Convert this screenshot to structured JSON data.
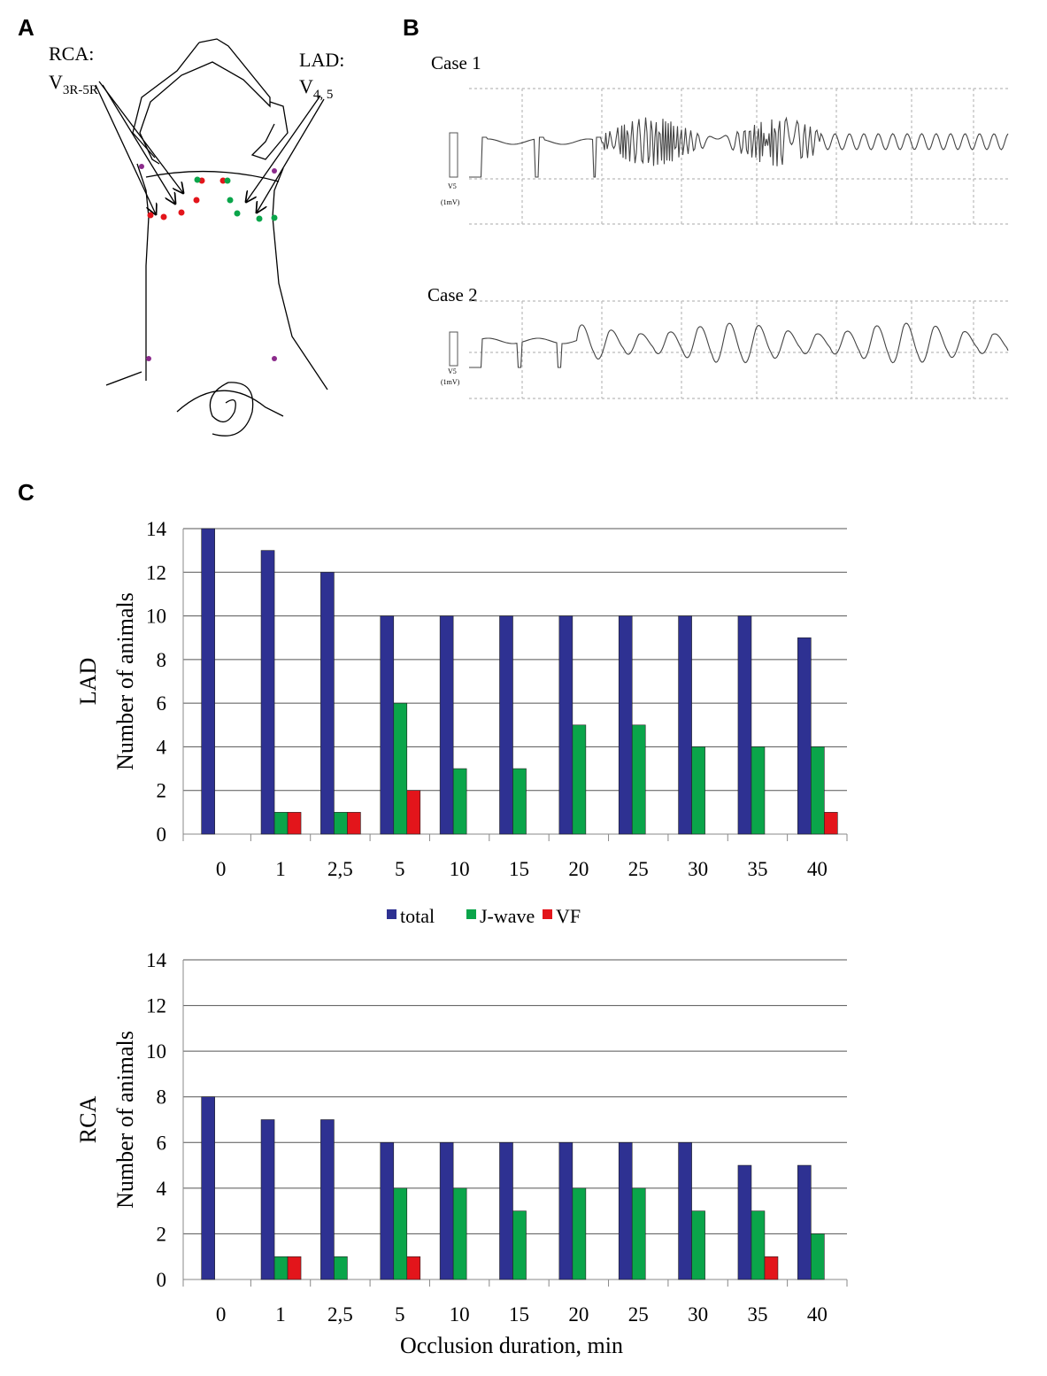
{
  "panels": {
    "a": {
      "label": "A",
      "rca": "RCA:",
      "rca_v": "V",
      "rca_sub": "3R-5R",
      "lad": "LAD:",
      "lad_v": "V",
      "lad_sub": "4, 5"
    },
    "b": {
      "label": "B",
      "case1": "Case 1",
      "case2": "Case 2",
      "lead": "V5",
      "scale": "(1mV)"
    },
    "c": {
      "label": "C"
    }
  },
  "chart_data": [
    {
      "type": "bar",
      "y_group": "LAD",
      "ylabel": "Number of animals",
      "categories": [
        "0",
        "1",
        "2,5",
        "5",
        "10",
        "15",
        "20",
        "25",
        "30",
        "35",
        "40"
      ],
      "series": [
        {
          "name": "total",
          "color": "#2e3192",
          "values": [
            14,
            13,
            12,
            10,
            10,
            10,
            10,
            10,
            10,
            10,
            9
          ]
        },
        {
          "name": "J-wave",
          "color": "#0aa54a",
          "values": [
            0,
            1,
            1,
            6,
            3,
            3,
            5,
            5,
            4,
            4,
            4
          ]
        },
        {
          "name": "VF",
          "color": "#e3151b",
          "values": [
            0,
            1,
            1,
            2,
            0,
            0,
            0,
            0,
            0,
            0,
            1
          ]
        }
      ],
      "ylim": [
        0,
        14
      ],
      "yticks": [
        0,
        2,
        4,
        6,
        8,
        10,
        12,
        14
      ],
      "grid": true,
      "legend": "bottom"
    },
    {
      "type": "bar",
      "y_group": "RCA",
      "ylabel": "Number of animals",
      "xlabel": "Occlusion duration, min",
      "categories": [
        "0",
        "1",
        "2,5",
        "5",
        "10",
        "15",
        "20",
        "25",
        "30",
        "35",
        "40"
      ],
      "series": [
        {
          "color": "#2e3192",
          "values": [
            8,
            7,
            7,
            6,
            6,
            6,
            6,
            6,
            6,
            5,
            5
          ]
        },
        {
          "color": "#0aa54a",
          "values": [
            0,
            1,
            1,
            4,
            4,
            3,
            4,
            4,
            3,
            3,
            2
          ]
        },
        {
          "color": "#e3151b",
          "values": [
            0,
            1,
            0,
            1,
            0,
            0,
            0,
            0,
            0,
            1,
            0
          ]
        }
      ],
      "ylim": [
        0,
        14
      ],
      "yticks": [
        0,
        2,
        4,
        6,
        8,
        10,
        12,
        14
      ],
      "grid": true
    }
  ]
}
